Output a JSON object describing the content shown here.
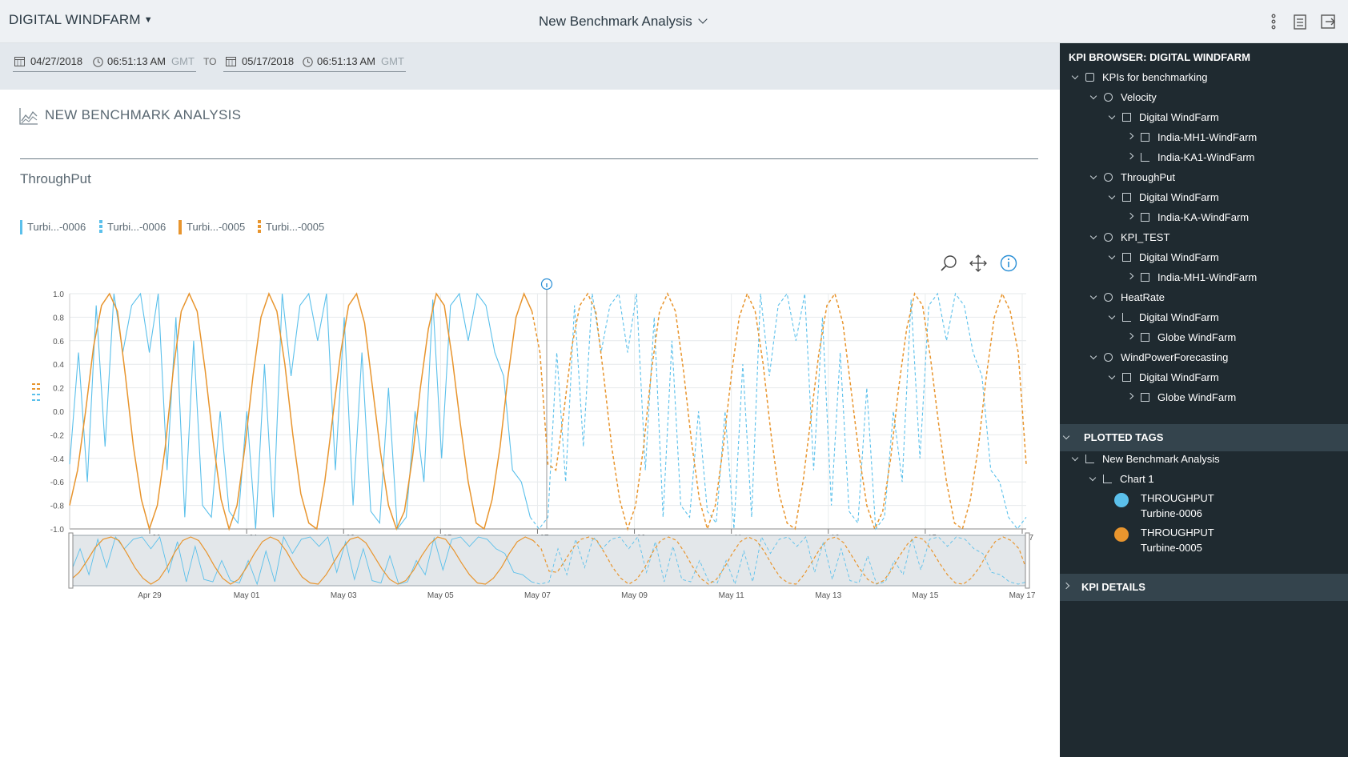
{
  "header": {
    "app_title": "DIGITAL WINDFARM",
    "view_title": "New Benchmark Analysis",
    "icons": [
      "more-vertical-icon",
      "clipboard-icon",
      "exit-icon"
    ]
  },
  "date_range": {
    "from_date": "04/27/2018",
    "from_time": "06:51:13 AM",
    "from_tz": "GMT",
    "to_label": "TO",
    "to_date": "05/17/2018",
    "to_time": "06:51:13 AM",
    "to_tz": "GMT"
  },
  "analysis": {
    "title": "NEW BENCHMARK ANALYSIS",
    "chart_title": "ThroughPut",
    "legend": [
      {
        "label": "Turbi...-0006",
        "color": "#5bc0eb",
        "style": "solid"
      },
      {
        "label": "Turbi...-0006",
        "color": "#5bc0eb",
        "style": "dashed"
      },
      {
        "label": "Turbi...-0005",
        "color": "#e8952e",
        "style": "solid"
      },
      {
        "label": "Turbi...-0005",
        "color": "#e8952e",
        "style": "dashed"
      }
    ],
    "toolbar_icons": [
      "zoom-icon",
      "pan-icon",
      "info-icon"
    ]
  },
  "chart_data": {
    "type": "line",
    "title": "ThroughPut",
    "ylim": [
      -1.0,
      1.0
    ],
    "yticks": [
      "1.0",
      "0.8",
      "0.6",
      "0.4",
      "0.2",
      "0.0",
      "-0.2",
      "-0.4",
      "-0.6",
      "-0.8",
      "-1.0"
    ],
    "xticks": [
      "29",
      "01",
      "03",
      "05",
      "07",
      "09",
      "11",
      "13",
      "15",
      "17"
    ],
    "navigator_xticks": [
      "Apr 29",
      "May 01",
      "May 03",
      "May 05",
      "May 07",
      "May 09",
      "May 11",
      "May 13",
      "May 15",
      "May 17"
    ],
    "x_range": [
      "2018-04-27",
      "2018-05-17"
    ],
    "split_date": "2018-05-07",
    "series": [
      {
        "name": "Turbi...-0006",
        "color": "#5bc0eb",
        "values": [
          -0.45,
          0.5,
          -0.6,
          0.9,
          -0.3,
          1.0,
          0.5,
          0.9,
          1.0,
          0.5,
          1.0,
          -0.5,
          0.8,
          -0.9,
          0.6,
          -0.8,
          -0.9,
          0.0,
          -0.85,
          -0.95,
          0.0,
          -1.0,
          0.4,
          -0.9,
          1.0,
          0.3,
          0.9,
          1.0,
          0.6,
          1.0,
          -0.5,
          0.8,
          -0.8,
          0.5,
          -0.85,
          -0.95,
          0.2,
          -1.0,
          -0.9,
          0.0,
          -0.6,
          0.95,
          -0.4,
          0.9,
          1.0,
          0.6,
          1.0,
          0.9,
          0.5,
          0.3,
          -0.5,
          -0.6,
          -0.9,
          -1.0,
          -0.9
        ]
      },
      {
        "name": "Turbi...-0005",
        "color": "#e8952e",
        "values": [
          -0.8,
          -0.5,
          0.0,
          0.55,
          0.9,
          1.0,
          0.85,
          0.3,
          -0.3,
          -0.75,
          -1.0,
          -0.8,
          -0.3,
          0.35,
          0.85,
          1.0,
          0.85,
          0.35,
          -0.25,
          -0.75,
          -1.0,
          -0.8,
          -0.3,
          0.3,
          0.8,
          1.0,
          0.85,
          0.4,
          -0.2,
          -0.7,
          -0.95,
          -1.0,
          -0.6,
          -0.05,
          0.5,
          0.9,
          1.0,
          0.75,
          0.2,
          -0.35,
          -0.8,
          -1.0,
          -0.85,
          -0.4,
          0.2,
          0.7,
          1.0,
          0.9,
          0.45,
          -0.1,
          -0.6,
          -0.95,
          -1.0,
          -0.75,
          -0.3,
          0.3,
          0.8,
          1.0,
          0.85,
          0.5,
          -0.45
        ]
      }
    ]
  },
  "sidebar": {
    "kpi_browser_title": "KPI BROWSER: DIGITAL WINDFARM",
    "tree": [
      {
        "label": "KPIs for benchmarking",
        "level": 0,
        "chev": "open",
        "icon": "cube"
      },
      {
        "label": "Velocity",
        "level": 1,
        "chev": "open",
        "icon": "multi"
      },
      {
        "label": "Digital WindFarm",
        "level": 2,
        "chev": "open",
        "icon": "box"
      },
      {
        "label": "India-MH1-WindFarm",
        "level": 3,
        "chev": "closed",
        "icon": "box"
      },
      {
        "label": "India-KA1-WindFarm",
        "level": 3,
        "chev": "closed",
        "icon": "chart"
      },
      {
        "label": "ThroughPut",
        "level": 1,
        "chev": "open",
        "icon": "multi"
      },
      {
        "label": "Digital WindFarm",
        "level": 2,
        "chev": "open",
        "icon": "box"
      },
      {
        "label": "India-KA-WindFarm",
        "level": 3,
        "chev": "closed",
        "icon": "box"
      },
      {
        "label": "KPI_TEST",
        "level": 1,
        "chev": "open",
        "icon": "multi"
      },
      {
        "label": "Digital WindFarm",
        "level": 2,
        "chev": "open",
        "icon": "box"
      },
      {
        "label": "India-MH1-WindFarm",
        "level": 3,
        "chev": "closed",
        "icon": "box"
      },
      {
        "label": "HeatRate",
        "level": 1,
        "chev": "open",
        "icon": "multi"
      },
      {
        "label": "Digital WindFarm",
        "level": 2,
        "chev": "open",
        "icon": "chart"
      },
      {
        "label": "Globe WindFarm",
        "level": 3,
        "chev": "closed",
        "icon": "box"
      },
      {
        "label": "WindPowerForecasting",
        "level": 1,
        "chev": "open",
        "icon": "multi"
      },
      {
        "label": "Digital WindFarm",
        "level": 2,
        "chev": "open",
        "icon": "box"
      },
      {
        "label": "Globe WindFarm",
        "level": 3,
        "chev": "closed",
        "icon": "box"
      }
    ],
    "plotted_tags_title": "PLOTTED TAGS",
    "plotted_analysis": "New Benchmark Analysis",
    "plotted_chart": "Chart 1",
    "tags": [
      {
        "line1": "THROUGHPUT",
        "line2": "Turbine-0006",
        "color": "#5bc0eb"
      },
      {
        "line1": "THROUGHPUT",
        "line2": "Turbine-0005",
        "color": "#e8952e"
      }
    ],
    "kpi_details_title": "KPI DETAILS"
  }
}
